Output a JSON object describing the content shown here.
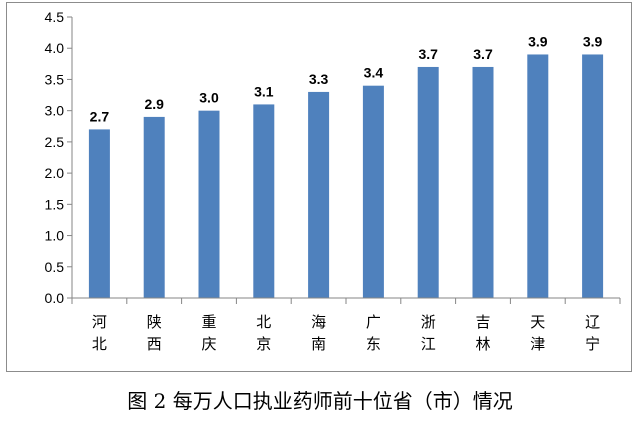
{
  "chart_data": {
    "type": "bar",
    "categories": [
      "河北",
      "陕西",
      "重庆",
      "北京",
      "海南",
      "广东",
      "浙江",
      "吉林",
      "天津",
      "辽宁"
    ],
    "values": [
      2.7,
      2.9,
      3.0,
      3.1,
      3.3,
      3.4,
      3.7,
      3.7,
      3.9,
      3.9
    ],
    "data_labels": [
      "2.7",
      "2.9",
      "3.0",
      "3.1",
      "3.3",
      "3.4",
      "3.7",
      "3.7",
      "3.9",
      "3.9"
    ],
    "title": "",
    "xlabel": "",
    "ylabel": "",
    "ylim": [
      0,
      4.5
    ],
    "yticks": [
      "0.0",
      "0.5",
      "1.0",
      "1.5",
      "2.0",
      "2.5",
      "3.0",
      "3.5",
      "4.0",
      "4.5"
    ],
    "grid": false,
    "legend": "none",
    "bar_color": "#4f81bd"
  },
  "caption": "图 2 每万人口执业药师前十位省（市）情况"
}
